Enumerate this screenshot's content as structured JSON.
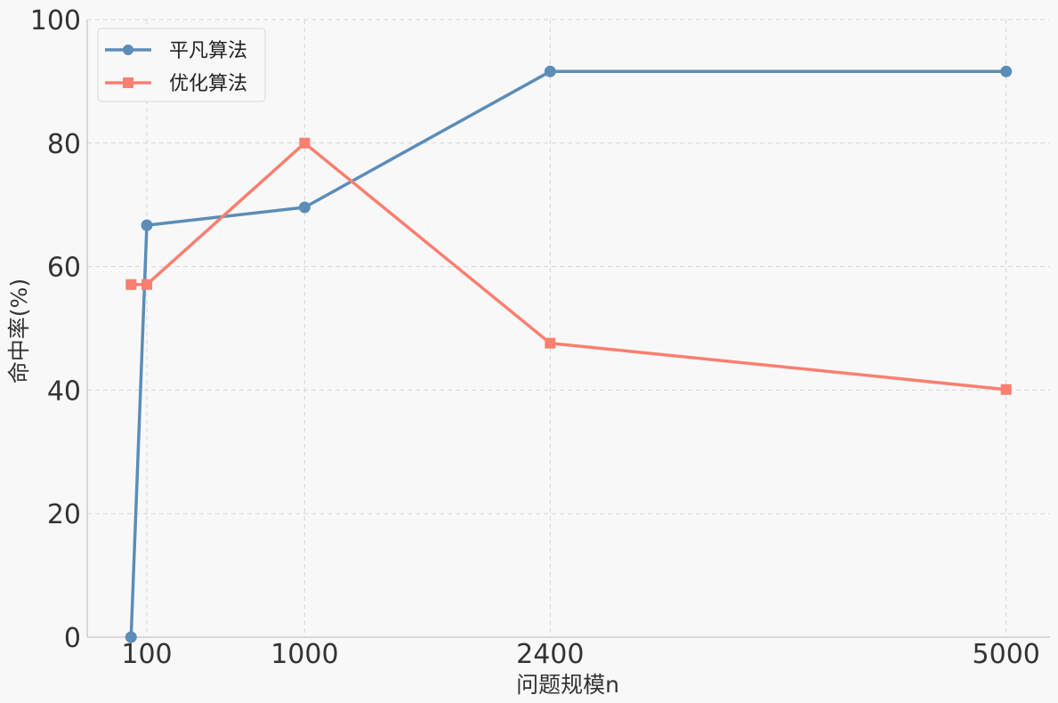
{
  "chart_data": {
    "type": "line",
    "title": "",
    "xlabel": "问题规模n",
    "ylabel": "命中率(%)",
    "x_tick_labels": [
      "100",
      "1000",
      "2400",
      "5000"
    ],
    "x_ticks": [
      100,
      1000,
      2400,
      5000
    ],
    "y_tick_labels": [
      "0",
      "20",
      "40",
      "60",
      "80",
      "100"
    ],
    "y_ticks": [
      0,
      20,
      40,
      60,
      80,
      100
    ],
    "xlim": [
      -240,
      5250
    ],
    "ylim": [
      0,
      100
    ],
    "grid": true,
    "legend_position": "top-left",
    "series": [
      {
        "name": "平凡算法",
        "color": "#5b8db8",
        "marker": "circle",
        "x": [
          10,
          100,
          1000,
          2400,
          5000
        ],
        "values": [
          0,
          66.7,
          69.6,
          91.6,
          91.6
        ]
      },
      {
        "name": "优化算法",
        "color": "#fa7f6f",
        "marker": "square",
        "x": [
          10,
          100,
          1000,
          2400,
          5000
        ],
        "values": [
          57.1,
          57.1,
          80.0,
          47.6,
          40.1
        ]
      }
    ]
  }
}
